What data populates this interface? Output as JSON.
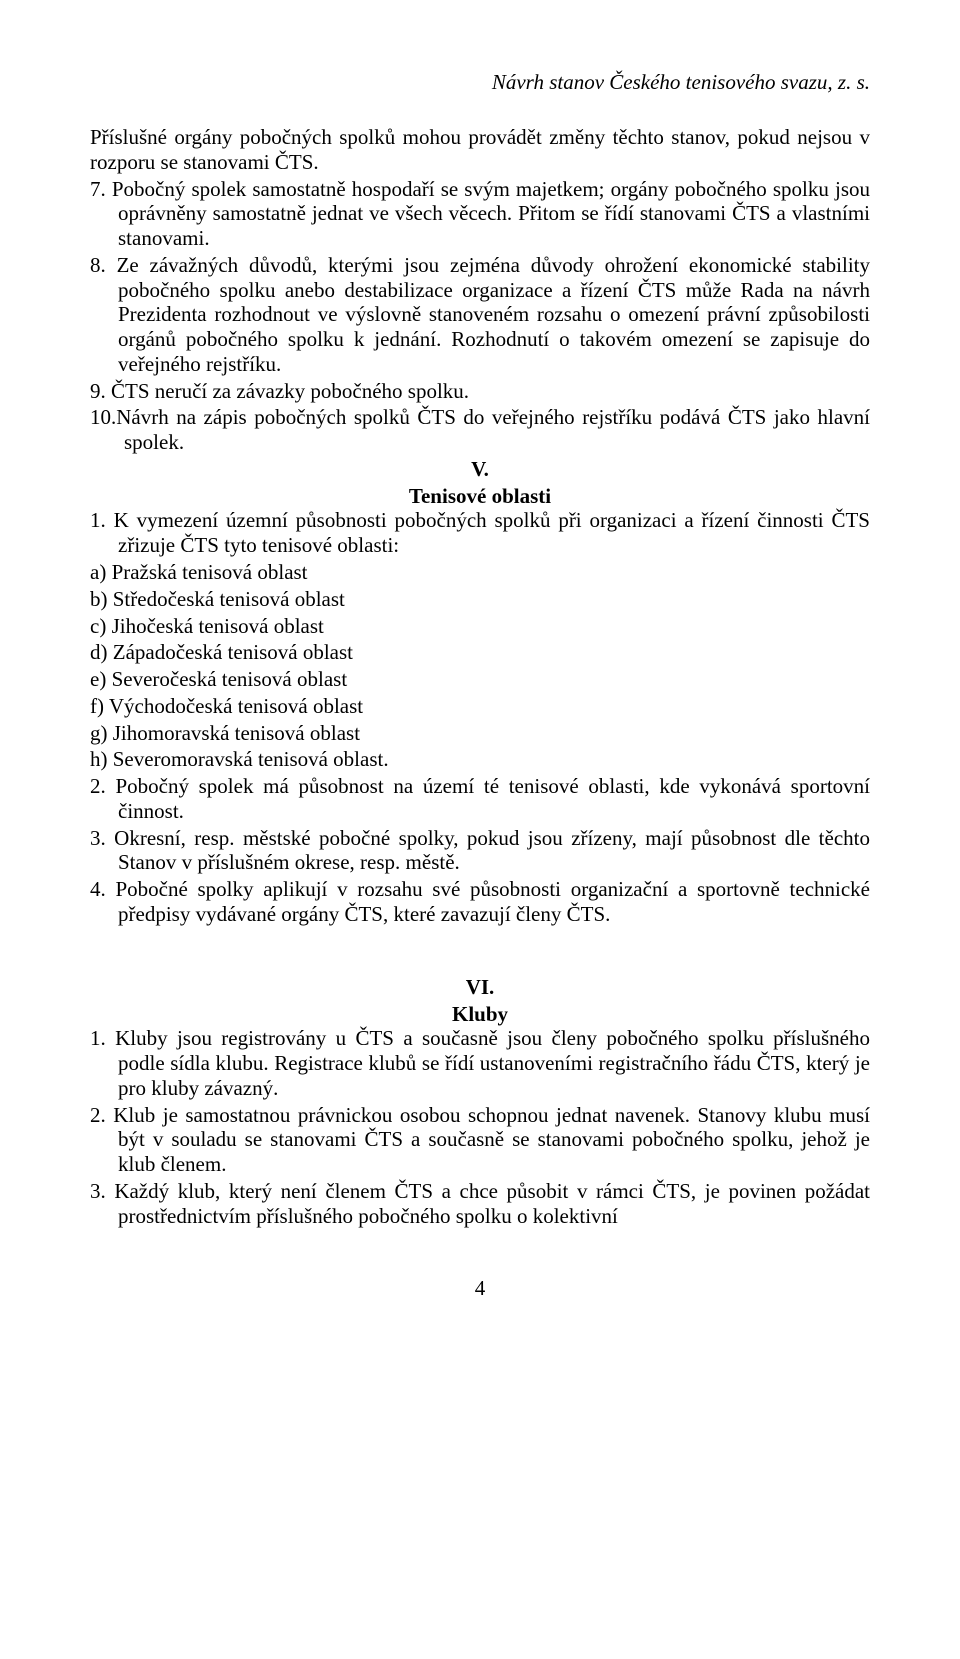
{
  "header": {
    "title": "Návrh stanov Českého tenisového svazu, z. s."
  },
  "body": {
    "p1": "Příslušné orgány pobočných spolků mohou provádět změny těchto stanov, pokud nejsou v rozporu se stanovami ČTS.",
    "p2": "7. Pobočný spolek samostatně hospodaří se svým majetkem; orgány pobočného spolku jsou oprávněny samostatně jednat ve všech věcech. Přitom se řídí stanovami ČTS a vlastními stanovami.",
    "p3": "8. Ze závažných důvodů, kterými jsou zejména důvody ohrožení ekonomické stability pobočného spolku anebo destabilizace organizace a řízení ČTS může Rada na návrh Prezidenta rozhodnout ve výslovně stanoveném rozsahu o omezení právní způsobilosti orgánů pobočného spolku k jednání. Rozhodnutí o takovém omezení se zapisuje do veřejného rejstříku.",
    "p4": "9. ČTS neručí za závazky pobočného spolku.",
    "p5": "10.Návrh na zápis pobočných spolků ČTS do veřejného rejstříku podává ČTS jako hlavní spolek.",
    "section_v_num": "V.",
    "section_v_title": "Tenisové oblasti",
    "v1": "1. K vymezení územní působnosti pobočných spolků při organizaci a řízení činnosti ČTS zřizuje ČTS tyto tenisové oblasti:",
    "va": "a) Pražská tenisová oblast",
    "vb": "b) Středočeská tenisová oblast",
    "vc": "c) Jihočeská tenisová oblast",
    "vd": "d) Západočeská tenisová oblast",
    "ve": "e) Severočeská tenisová oblast",
    "vf": "f) Východočeská tenisová oblast",
    "vg": "g) Jihomoravská tenisová oblast",
    "vh": "h) Severomoravská tenisová oblast.",
    "v2": "2. Pobočný spolek má působnost na území té tenisové oblasti, kde vykonává sportovní činnost.",
    "v3": "3. Okresní, resp. městské pobočné spolky, pokud jsou zřízeny, mají působnost dle těchto Stanov v příslušném okrese, resp. městě.",
    "v4": "4. Pobočné spolky aplikují v rozsahu své působnosti organizační a sportovně technické předpisy vydávané orgány ČTS, které zavazují členy ČTS.",
    "section_vi_num": "VI.",
    "section_vi_title": "Kluby",
    "vi1": "1. Kluby jsou registrovány u ČTS a současně jsou členy pobočného spolku příslušného podle sídla klubu. Registrace klubů se řídí ustanoveními registračního řádu ČTS, který je pro kluby závazný.",
    "vi2": "2. Klub je samostatnou právnickou osobou schopnou jednat navenek. Stanovy klubu musí být v souladu se stanovami ČTS a současně se stanovami pobočného spolku, jehož je klub členem.",
    "vi3": "3. Každý klub, který není členem ČTS a chce působit v rámci ČTS, je povinen požádat prostřednictvím příslušného pobočného spolku o kolektivní"
  },
  "footer": {
    "page": "4"
  },
  "style": {
    "text_color": "#000000",
    "background": "#ffffff",
    "font_family": "Times New Roman",
    "base_fontsize": 21
  }
}
